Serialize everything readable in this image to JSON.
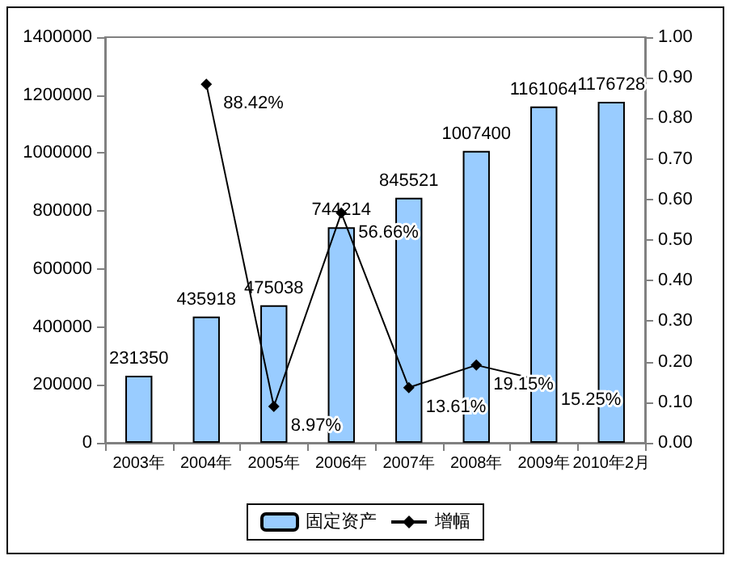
{
  "chart_data": {
    "type": "bar",
    "categories": [
      "2003年",
      "2004年",
      "2005年",
      "2006年",
      "2007年",
      "2008年",
      "2009年",
      "2010年2月"
    ],
    "series": [
      {
        "name": "固定资产",
        "color": "#99ccff",
        "values": [
          231350,
          435918,
          475038,
          744214,
          845521,
          1007400,
          1161064,
          1176728
        ],
        "value_labels": [
          "231350",
          "435918",
          "475038",
          "744214",
          "845521",
          "1007400",
          "1161064",
          "1176728"
        ]
      },
      {
        "name": "增幅",
        "type": "line",
        "axis": "y2",
        "color": "#000000",
        "marker": "diamond",
        "values": [
          null,
          0.8842,
          0.0897,
          0.5666,
          0.1361,
          0.1915,
          0.1525,
          null
        ],
        "value_labels": [
          null,
          "88.42%",
          "8.97%",
          "56.66%",
          "13.61%",
          "19.15%",
          "15.25%",
          null
        ]
      }
    ],
    "ylim": [
      0,
      1400000
    ],
    "yticks": [
      0,
      200000,
      400000,
      600000,
      800000,
      1000000,
      1200000,
      1400000
    ],
    "y2lim": [
      0,
      1
    ],
    "y2ticks": [
      {
        "value": 0,
        "label": "0.00"
      },
      {
        "value": 0.1,
        "label": "0.10"
      },
      {
        "value": 0.2,
        "label": "0.20"
      },
      {
        "value": 0.3,
        "label": "0.30"
      },
      {
        "value": 0.4,
        "label": "0.40"
      },
      {
        "value": 0.5,
        "label": "0.50"
      },
      {
        "value": 0.6,
        "label": "0.60"
      },
      {
        "value": 0.7,
        "label": "0.70"
      },
      {
        "value": 0.8,
        "label": "0.80"
      },
      {
        "value": 0.9,
        "label": "0.90"
      },
      {
        "value": 1,
        "label": "1.00"
      }
    ],
    "grid": false,
    "legend": "bottom"
  }
}
